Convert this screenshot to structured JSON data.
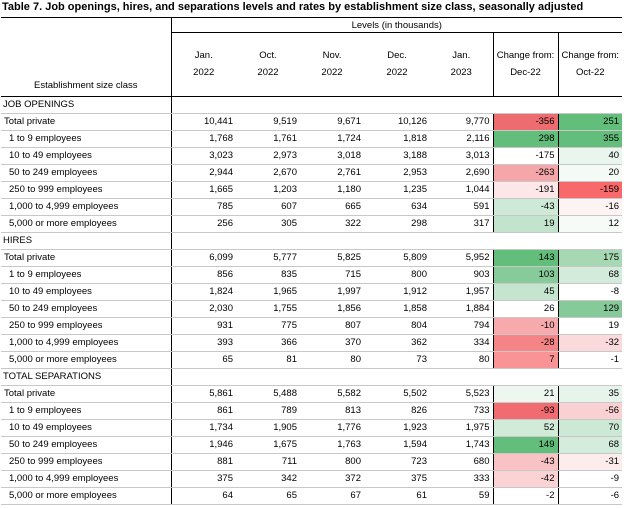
{
  "title": "Table 7. Job openings, hires, and separations levels and rates by establishment size class, seasonally adjusted",
  "header": {
    "levels_label": "Levels (in thousands)",
    "row_label": "Establishment size class",
    "columns": [
      {
        "line1": "Jan.",
        "line2": "2022"
      },
      {
        "line1": "Oct.",
        "line2": "2022"
      },
      {
        "line1": "Nov.",
        "line2": "2022"
      },
      {
        "line1": "Dec.",
        "line2": "2022"
      },
      {
        "line1": "Jan.",
        "line2": "2023"
      },
      {
        "line1": "Change from:",
        "line2": "Dec-22"
      },
      {
        "line1": "Change from:",
        "line2": "Oct-22"
      }
    ]
  },
  "sections": [
    {
      "name": "JOB OPENINGS",
      "rows": [
        {
          "label": "Total private",
          "values": [
            "10,441",
            "9,519",
            "9,671",
            "10,126",
            "9,770",
            "-356",
            "251"
          ],
          "c1": "#ed6c6f",
          "c2": "#63be7b"
        },
        {
          "label": "1 to 9 employees",
          "values": [
            "1,768",
            "1,761",
            "1,724",
            "1,818",
            "2,116",
            "298",
            "355"
          ],
          "c1": "#63be7b",
          "c2": "#63be7b"
        },
        {
          "label": "10 to 49 employees",
          "values": [
            "3,023",
            "2,973",
            "3,018",
            "3,188",
            "3,013",
            "-175",
            "40"
          ],
          "c1": "#ffffff",
          "c2": "#eaf5ed"
        },
        {
          "label": "50 to 249 employees",
          "values": [
            "2,944",
            "2,670",
            "2,761",
            "2,953",
            "2,690",
            "-263",
            "20"
          ],
          "c1": "#f4a6a8",
          "c2": "#f4faf6"
        },
        {
          "label": "250 to 999 employees",
          "values": [
            "1,665",
            "1,203",
            "1,180",
            "1,235",
            "1,044",
            "-191",
            "-159"
          ],
          "c1": "#fce6e7",
          "c2": "#f8696b"
        },
        {
          "label": "1,000 to 4,999 employees",
          "values": [
            "785",
            "607",
            "665",
            "634",
            "591",
            "-43",
            "-16"
          ],
          "c1": "#cfe9d7",
          "c2": "#fdf3f3"
        },
        {
          "label": "5,000 or more employees",
          "values": [
            "256",
            "305",
            "322",
            "298",
            "317",
            "19",
            "12"
          ],
          "c1": "#c3e4cc",
          "c2": "#f7fbf8"
        }
      ]
    },
    {
      "name": "HIRES",
      "rows": [
        {
          "label": "Total private",
          "values": [
            "6,099",
            "5,777",
            "5,825",
            "5,809",
            "5,952",
            "143",
            "175"
          ],
          "c1": "#63be7b",
          "c2": "#a6d8b3"
        },
        {
          "label": "1 to 9 employees",
          "values": [
            "856",
            "835",
            "715",
            "800",
            "903",
            "103",
            "68"
          ],
          "c1": "#88cb9b",
          "c2": "#d3ebda"
        },
        {
          "label": "10 to 49 employees",
          "values": [
            "1,824",
            "1,965",
            "1,997",
            "1,912",
            "1,957",
            "45",
            "-8"
          ],
          "c1": "#c5e5cf",
          "c2": "#ffffff"
        },
        {
          "label": "50 to 249 employees",
          "values": [
            "2,030",
            "1,755",
            "1,856",
            "1,858",
            "1,884",
            "26",
            "129"
          ],
          "c1": "#ffffff",
          "c2": "#86ca99"
        },
        {
          "label": "250 to 999 employees",
          "values": [
            "931",
            "775",
            "807",
            "804",
            "794",
            "-10",
            "19"
          ],
          "c1": "#f7aaac",
          "c2": "#ffffff"
        },
        {
          "label": "1,000 to 4,999 employees",
          "values": [
            "393",
            "366",
            "370",
            "362",
            "334",
            "-28",
            "-32"
          ],
          "c1": "#f58487",
          "c2": "#fadadb"
        },
        {
          "label": "5,000 or more employees",
          "values": [
            "65",
            "81",
            "80",
            "73",
            "80",
            "7",
            "-1"
          ],
          "c1": "#fa9396",
          "c2": "#ffffff"
        }
      ]
    },
    {
      "name": "TOTAL SEPARATIONS",
      "rows": [
        {
          "label": "Total private",
          "values": [
            "5,861",
            "5,488",
            "5,582",
            "5,502",
            "5,523",
            "21",
            "35"
          ],
          "c1": "#edf7f0",
          "c2": "#e7f4eb"
        },
        {
          "label": "1 to 9 employees",
          "values": [
            "861",
            "789",
            "813",
            "826",
            "733",
            "-93",
            "-56"
          ],
          "c1": "#f06c70",
          "c2": "#fad1d2"
        },
        {
          "label": "10 to 49 employees",
          "values": [
            "1,734",
            "1,905",
            "1,776",
            "1,923",
            "1,975",
            "52",
            "70"
          ],
          "c1": "#d2ebd9",
          "c2": "#cde9d5"
        },
        {
          "label": "50 to 249 employees",
          "values": [
            "1,946",
            "1,675",
            "1,763",
            "1,594",
            "1,743",
            "149",
            "68"
          ],
          "c1": "#63be7b",
          "c2": "#d4ecdb"
        },
        {
          "label": "250 to 999 employees",
          "values": [
            "881",
            "711",
            "800",
            "723",
            "680",
            "-43",
            "-31"
          ],
          "c1": "#f9c3c5",
          "c2": "#fcecec"
        },
        {
          "label": "1,000 to 4,999 employees",
          "values": [
            "375",
            "342",
            "372",
            "375",
            "333",
            "-42",
            "-9"
          ],
          "c1": "#fbd3d4",
          "c2": "#ffffff"
        },
        {
          "label": "5,000 or more employees",
          "values": [
            "64",
            "65",
            "67",
            "61",
            "59",
            "-2",
            "-6"
          ],
          "c1": "#ffffff",
          "c2": "#ffffff"
        }
      ]
    }
  ]
}
